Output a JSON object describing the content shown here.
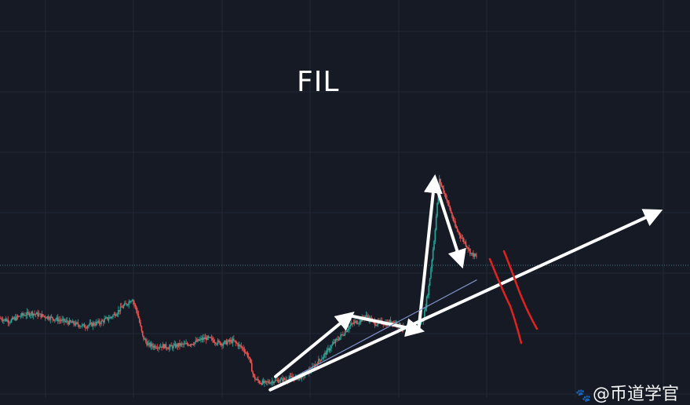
{
  "chart_data": {
    "type": "candlestick",
    "title": "FIL",
    "xlabel": "",
    "ylabel": "",
    "grid": true,
    "colors": {
      "up": "#26a69a",
      "down": "#ef5350",
      "background": "#161a25",
      "grid": "#232837",
      "annotation": "#ffffff",
      "mark": "#e0231f"
    },
    "close_series": [
      0.56,
      0.55,
      0.54,
      0.56,
      0.58,
      0.59,
      0.6,
      0.59,
      0.58,
      0.57,
      0.56,
      0.55,
      0.54,
      0.53,
      0.52,
      0.51,
      0.5,
      0.51,
      0.52,
      0.53,
      0.55,
      0.57,
      0.6,
      0.64,
      0.67,
      0.71,
      0.6,
      0.42,
      0.36,
      0.35,
      0.35,
      0.35,
      0.34,
      0.35,
      0.36,
      0.36,
      0.37,
      0.38,
      0.4,
      0.41,
      0.4,
      0.38,
      0.37,
      0.38,
      0.39,
      0.36,
      0.33,
      0.27,
      0.11,
      0.08,
      0.07,
      0.08,
      0.09,
      0.09,
      0.1,
      0.11,
      0.11,
      0.12,
      0.15,
      0.18,
      0.23,
      0.27,
      0.32,
      0.37,
      0.41,
      0.45,
      0.5,
      0.53,
      0.54,
      0.58,
      0.55,
      0.52,
      0.53,
      0.52,
      0.54,
      0.52,
      0.49,
      0.47,
      0.48,
      0.5,
      0.56,
      0.8,
      1.15,
      1.6,
      1.5,
      1.38,
      1.25,
      1.18,
      1.12,
      1.05,
      1.02
    ],
    "price_line": 0.96,
    "annotations": [
      {
        "type": "zigzag-arrows",
        "points": [
          [
            52,
            0.12
          ],
          [
            66,
            0.58
          ],
          [
            79,
            0.47
          ],
          [
            82,
            1.6
          ],
          [
            87,
            0.98
          ]
        ]
      },
      {
        "type": "trendline",
        "points": [
          [
            51,
            0.02
          ],
          [
            90,
            0.85
          ]
        ]
      },
      {
        "type": "arrow",
        "points": [
          [
            51,
            0.02
          ],
          [
            124,
            1.36
          ]
        ]
      },
      {
        "type": "red-marks",
        "count": 2
      }
    ]
  },
  "watermark": {
    "icon": "paw-icon",
    "text": "@币道学官"
  }
}
